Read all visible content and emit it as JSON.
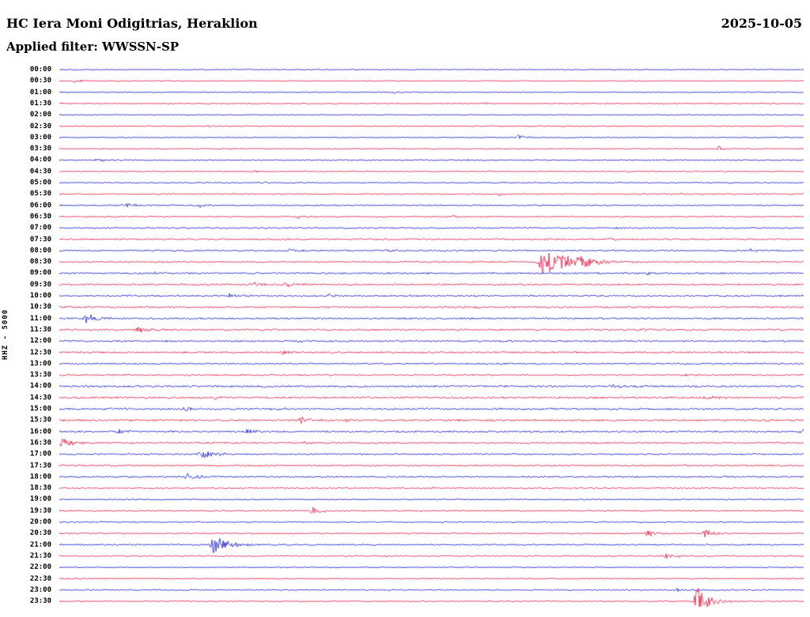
{
  "header": {
    "station_title": "HC Iera Moni Odigitrias, Heraklion",
    "date": "2025-10-05",
    "filter_label": "Applied filter: WWSSN-SP"
  },
  "axis": {
    "scale_label": "HHZ - 5000"
  },
  "colors": {
    "blue": "#1414d2",
    "red": "#e8143e"
  },
  "chart_data": {
    "type": "line",
    "title": "Helicorder day plot HC Iera Moni Odigitrias, Heraklion 2025-10-05, filter WWSSN-SP",
    "xlabel": "",
    "ylabel": "HHZ - 5000",
    "row_duration_minutes": 30,
    "start_time": "00:00",
    "end_time": "24:00",
    "grid": false,
    "legend": "none",
    "traces": [
      {
        "label": "00:00",
        "color": "blue",
        "noise": 0.6,
        "events": [
          [
            0.25,
            1.2
          ],
          [
            0.55,
            1.2
          ]
        ]
      },
      {
        "label": "00:30",
        "color": "red",
        "noise": 0.6,
        "events": [
          [
            0.02,
            2,
            1.5
          ]
        ]
      },
      {
        "label": "01:00",
        "color": "blue",
        "noise": 0.6,
        "events": [
          [
            0.45,
            1.3
          ]
        ]
      },
      {
        "label": "01:30",
        "color": "red",
        "noise": 0.6,
        "events": [
          [
            0.57,
            2.2,
            1.5
          ]
        ]
      },
      {
        "label": "02:00",
        "color": "blue",
        "noise": 0.5,
        "events": []
      },
      {
        "label": "02:30",
        "color": "red",
        "noise": 0.6,
        "events": [
          [
            0.2,
            1.3
          ]
        ]
      },
      {
        "label": "03:00",
        "color": "blue",
        "noise": 0.6,
        "events": [
          [
            0.615,
            4,
            1.8
          ]
        ]
      },
      {
        "label": "03:30",
        "color": "red",
        "noise": 0.6,
        "events": [
          [
            0.885,
            3.5,
            2
          ]
        ]
      },
      {
        "label": "04:00",
        "color": "blue",
        "noise": 0.7,
        "events": [
          [
            0.05,
            2.5,
            2
          ],
          [
            0.55,
            1.4
          ]
        ]
      },
      {
        "label": "04:30",
        "color": "red",
        "noise": 0.7,
        "events": [
          [
            0.26,
            1.4
          ]
        ]
      },
      {
        "label": "05:00",
        "color": "blue",
        "noise": 0.7,
        "events": [
          [
            0.27,
            2.2,
            1.6
          ]
        ]
      },
      {
        "label": "05:30",
        "color": "red",
        "noise": 0.7,
        "events": [
          [
            0.59,
            2.4,
            1.6
          ]
        ]
      },
      {
        "label": "06:00",
        "color": "blue",
        "noise": 0.8,
        "events": [
          [
            0.088,
            3.5,
            2
          ],
          [
            0.187,
            4,
            1.5
          ]
        ]
      },
      {
        "label": "06:30",
        "color": "red",
        "noise": 0.8,
        "events": [
          [
            0.32,
            2.4,
            1.6
          ],
          [
            0.53,
            2.4,
            1.6
          ]
        ]
      },
      {
        "label": "07:00",
        "color": "blue",
        "noise": 0.8,
        "events": [
          [
            0.75,
            1.5
          ]
        ]
      },
      {
        "label": "07:30",
        "color": "red",
        "noise": 0.9,
        "events": [
          [
            0.655,
            2,
            1.5
          ],
          [
            0.732,
            3,
            1.8
          ]
        ]
      },
      {
        "label": "08:00",
        "color": "blue",
        "noise": 0.9,
        "events": [
          [
            0.31,
            2.5,
            1.8
          ],
          [
            0.44,
            2,
            1.5
          ],
          [
            0.93,
            3,
            2
          ]
        ]
      },
      {
        "label": "08:30",
        "color": "red",
        "noise": 0.9,
        "events": [
          [
            0.652,
            17,
            5
          ],
          [
            0.7,
            4,
            3
          ]
        ]
      },
      {
        "label": "09:00",
        "color": "blue",
        "noise": 1.0,
        "events": [
          [
            0.13,
            2,
            1.5
          ],
          [
            0.79,
            2.5,
            1.6
          ]
        ]
      },
      {
        "label": "09:30",
        "color": "red",
        "noise": 1.0,
        "events": [
          [
            0.26,
            3,
            3
          ],
          [
            0.305,
            2.5,
            2
          ]
        ]
      },
      {
        "label": "10:00",
        "color": "blue",
        "noise": 1.0,
        "events": [
          [
            0.23,
            2.5,
            2.5
          ],
          [
            0.36,
            2.5,
            2
          ]
        ]
      },
      {
        "label": "10:30",
        "color": "red",
        "noise": 1.0,
        "events": [
          [
            0.56,
            2,
            1.5
          ],
          [
            0.77,
            2,
            1.5
          ]
        ]
      },
      {
        "label": "11:00",
        "color": "blue",
        "noise": 1.0,
        "events": [
          [
            0.037,
            7,
            2.5
          ]
        ]
      },
      {
        "label": "11:30",
        "color": "red",
        "noise": 1.0,
        "events": [
          [
            0.107,
            4,
            3
          ],
          [
            0.78,
            2,
            1.5
          ]
        ]
      },
      {
        "label": "12:00",
        "color": "blue",
        "noise": 1.0,
        "events": [
          [
            0.32,
            3,
            2
          ]
        ]
      },
      {
        "label": "12:30",
        "color": "red",
        "noise": 1.0,
        "events": [
          [
            0.3,
            2.5,
            2
          ]
        ]
      },
      {
        "label": "13:00",
        "color": "blue",
        "noise": 0.9,
        "events": [
          [
            0.6,
            1.4
          ]
        ]
      },
      {
        "label": "13:30",
        "color": "red",
        "noise": 0.9,
        "events": [
          [
            0.84,
            2,
            1.5
          ]
        ]
      },
      {
        "label": "14:00",
        "color": "blue",
        "noise": 1.1,
        "events": [
          [
            0.27,
            2,
            1.5
          ],
          [
            0.74,
            2.5,
            1.8
          ]
        ]
      },
      {
        "label": "14:30",
        "color": "red",
        "noise": 1.1,
        "events": [
          [
            0.21,
            3,
            2
          ],
          [
            0.87,
            3,
            2.5
          ]
        ]
      },
      {
        "label": "15:00",
        "color": "blue",
        "noise": 1.1,
        "events": [
          [
            0.17,
            3,
            2
          ],
          [
            0.28,
            2.5,
            2
          ]
        ]
      },
      {
        "label": "15:30",
        "color": "red",
        "noise": 1.1,
        "events": [
          [
            0.325,
            4,
            2
          ],
          [
            0.385,
            2.5,
            1.6
          ]
        ]
      },
      {
        "label": "16:00",
        "color": "blue",
        "noise": 1.0,
        "events": [
          [
            0.08,
            4,
            2
          ],
          [
            0.253,
            3.5,
            2
          ],
          [
            0.995,
            4,
            2
          ]
        ]
      },
      {
        "label": "16:30",
        "color": "red",
        "noise": 1.0,
        "events": [
          [
            0.004,
            6,
            2.5
          ],
          [
            0.33,
            2,
            1.5
          ]
        ]
      },
      {
        "label": "17:00",
        "color": "blue",
        "noise": 0.9,
        "events": [
          [
            0.19,
            5,
            3.5
          ]
        ]
      },
      {
        "label": "17:30",
        "color": "red",
        "noise": 0.9,
        "events": [
          [
            0.84,
            2,
            1.5
          ]
        ]
      },
      {
        "label": "18:00",
        "color": "blue",
        "noise": 0.9,
        "events": [
          [
            0.172,
            4.5,
            3
          ]
        ]
      },
      {
        "label": "18:30",
        "color": "red",
        "noise": 0.8,
        "events": [
          [
            0.5,
            1.3
          ]
        ]
      },
      {
        "label": "19:00",
        "color": "blue",
        "noise": 0.7,
        "events": []
      },
      {
        "label": "19:30",
        "color": "red",
        "noise": 0.8,
        "events": [
          [
            0.34,
            6,
            2
          ]
        ]
      },
      {
        "label": "20:00",
        "color": "blue",
        "noise": 0.7,
        "events": [
          [
            0.1,
            1.3
          ]
        ]
      },
      {
        "label": "20:30",
        "color": "red",
        "noise": 0.8,
        "events": [
          [
            0.79,
            4,
            2.5
          ],
          [
            0.868,
            5,
            2.5
          ]
        ]
      },
      {
        "label": "21:00",
        "color": "blue",
        "noise": 0.8,
        "events": [
          [
            0.208,
            11,
            3
          ]
        ]
      },
      {
        "label": "21:30",
        "color": "red",
        "noise": 0.8,
        "events": [
          [
            0.815,
            3,
            2
          ]
        ]
      },
      {
        "label": "22:00",
        "color": "blue",
        "noise": 0.6,
        "events": []
      },
      {
        "label": "22:30",
        "color": "red",
        "noise": 0.7,
        "events": [
          [
            0.6,
            1.3
          ]
        ]
      },
      {
        "label": "23:00",
        "color": "blue",
        "noise": 0.7,
        "events": [
          [
            0.83,
            2,
            1.5
          ]
        ]
      },
      {
        "label": "23:30",
        "color": "red",
        "noise": 0.7,
        "events": [
          [
            0.857,
            19,
            2.5
          ]
        ]
      }
    ]
  }
}
